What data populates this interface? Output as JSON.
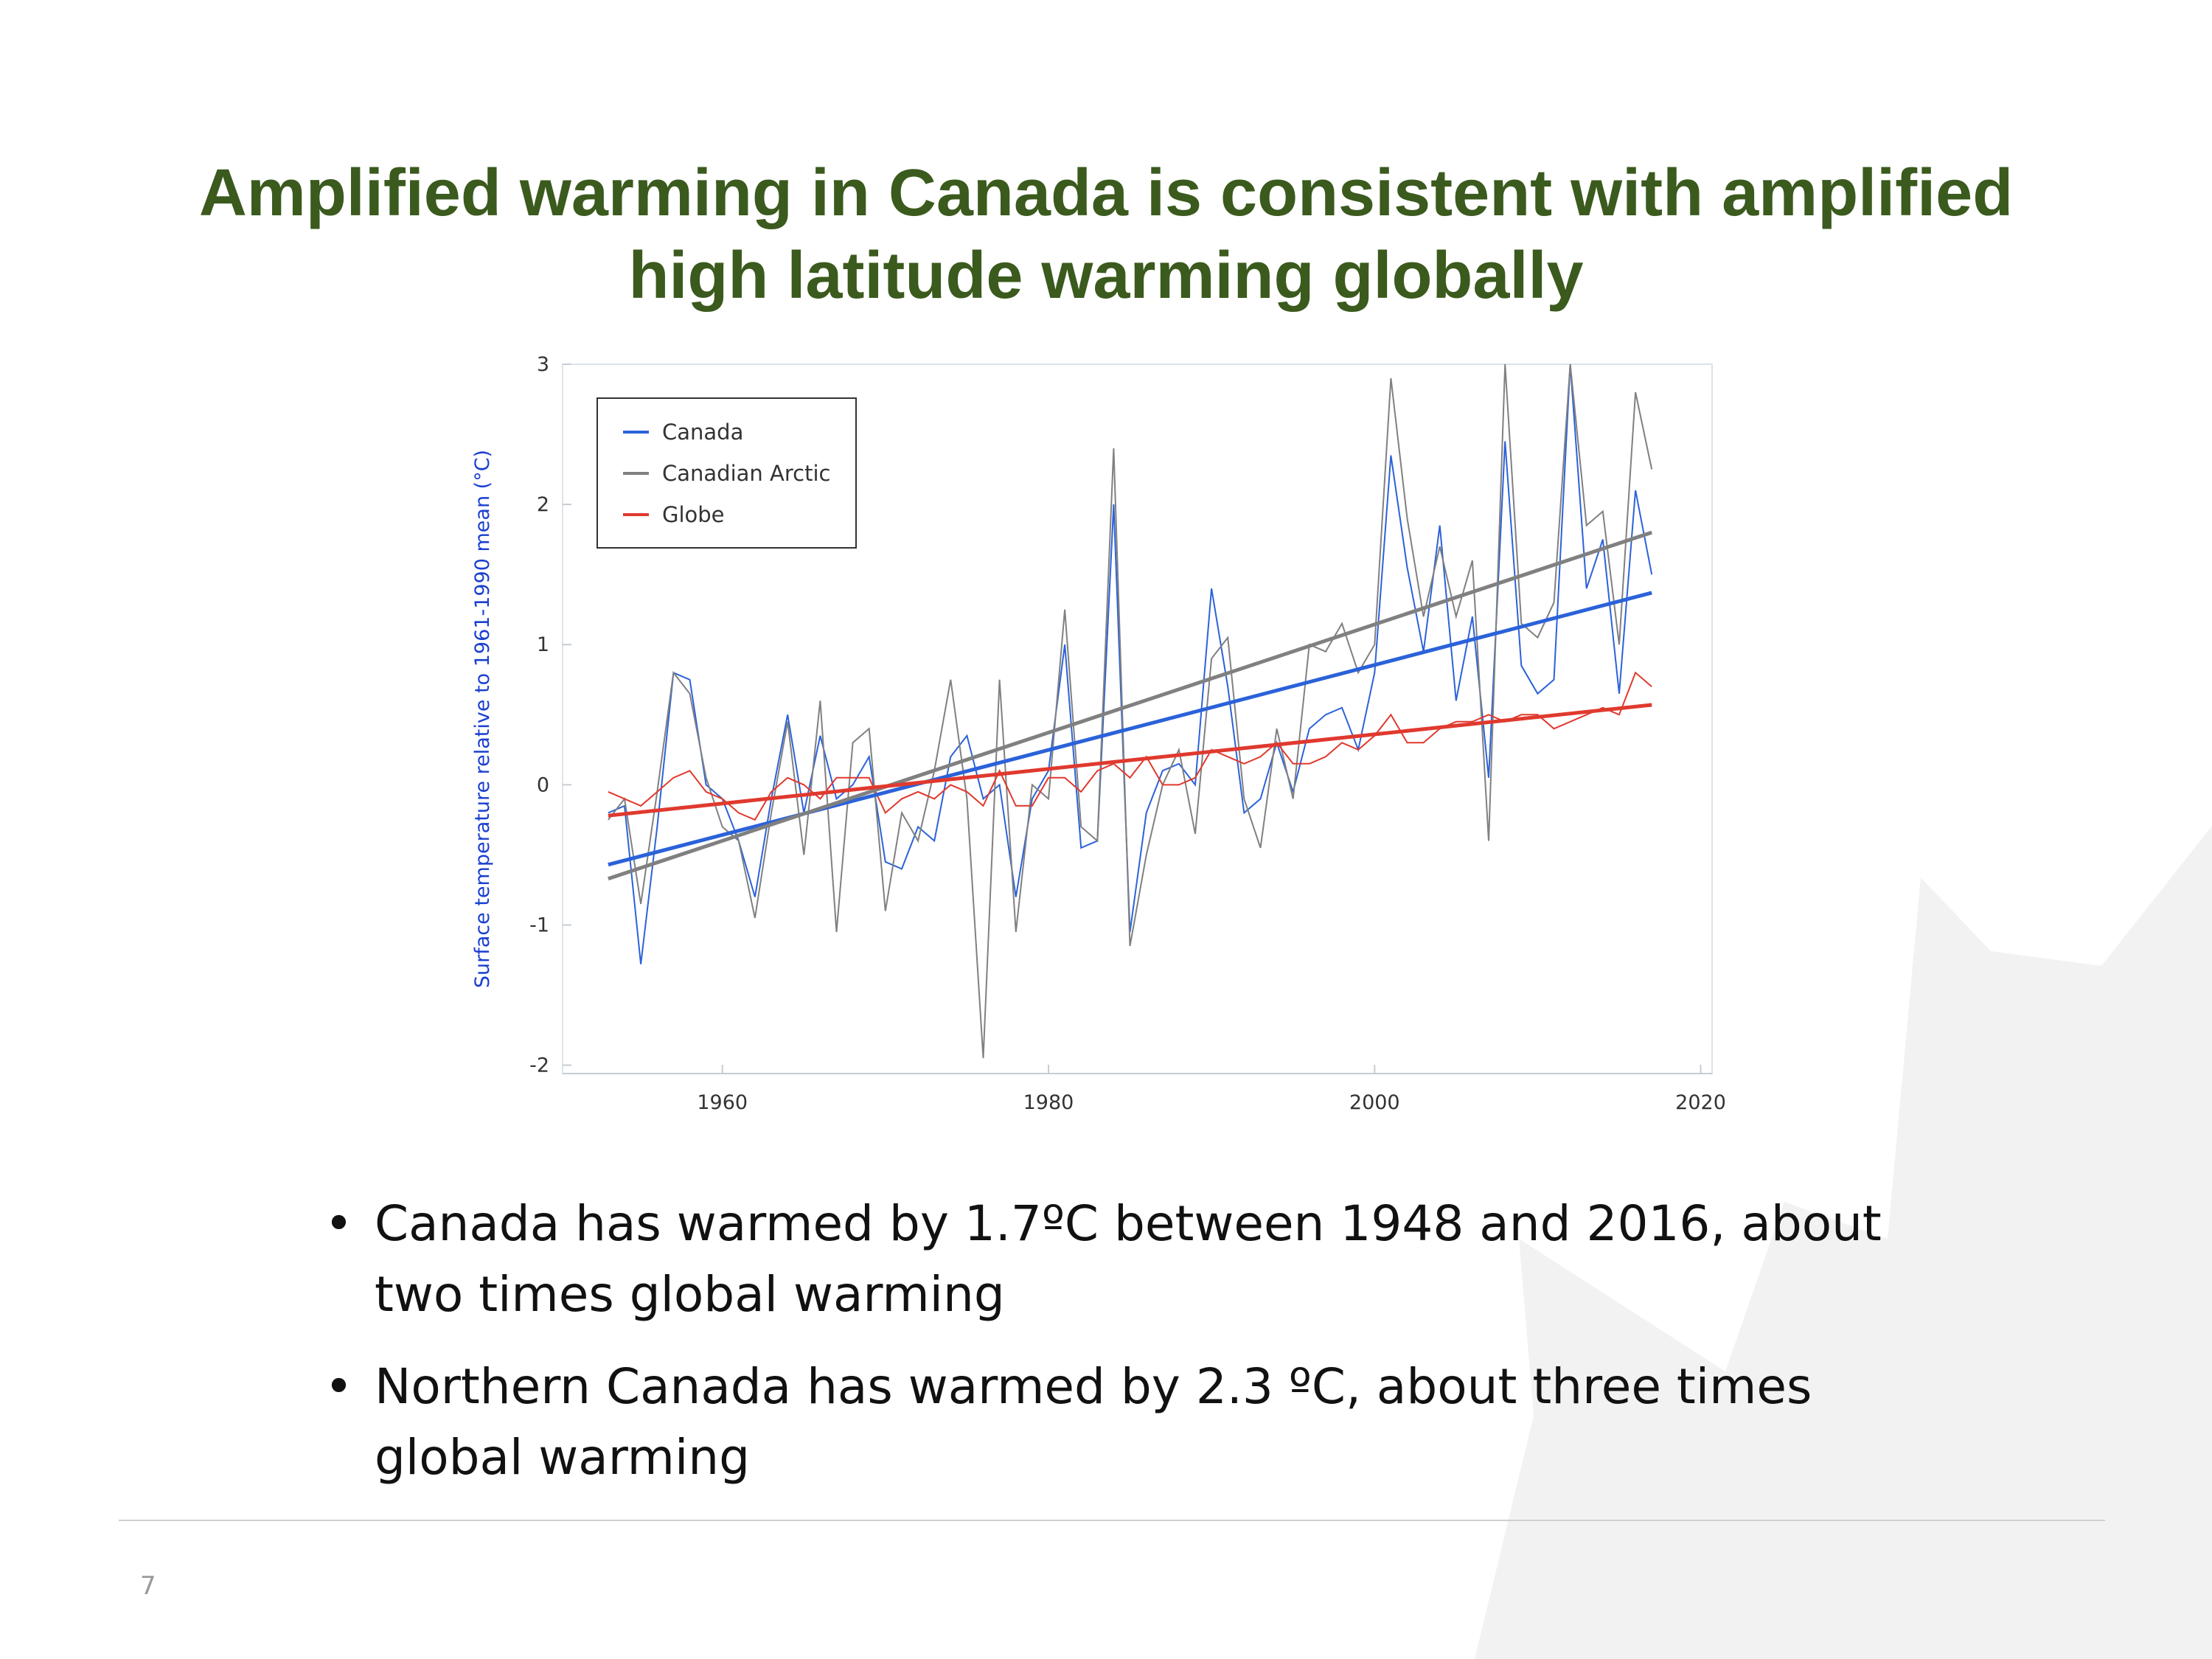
{
  "slide": {
    "title_lines": [
      "Amplified warming in Canada is consistent with amplified",
      "high latitude warming globally"
    ],
    "bullets": [
      "Canada has warmed by 1.7ºC between 1948 and 2016, about two times global warming",
      "Northern Canada has warmed by 2.3 ºC, about three times global warming"
    ],
    "page_number": "7"
  },
  "chart_data": {
    "type": "line",
    "y_label": "Surface temperature relative to 1961-1990 mean (°C)",
    "x": [
      1953,
      1954,
      1955,
      1956,
      1957,
      1958,
      1959,
      1960,
      1961,
      1962,
      1963,
      1964,
      1965,
      1966,
      1967,
      1968,
      1969,
      1970,
      1971,
      1972,
      1973,
      1974,
      1975,
      1976,
      1977,
      1978,
      1979,
      1980,
      1981,
      1982,
      1983,
      1984,
      1985,
      1986,
      1987,
      1988,
      1989,
      1990,
      1991,
      1992,
      1993,
      1994,
      1995,
      1996,
      1997,
      1998,
      1999,
      2000,
      2001,
      2002,
      2003,
      2004,
      2005,
      2006,
      2007,
      2008,
      2009,
      2010,
      2011,
      2012,
      2013,
      2014,
      2015,
      2016,
      2017
    ],
    "series": [
      {
        "name": "Canada",
        "color": "#2b62d9",
        "values": [
          -0.2,
          -0.15,
          -1.28,
          -0.3,
          0.8,
          0.75,
          0.0,
          -0.1,
          -0.4,
          -0.8,
          -0.1,
          0.5,
          -0.2,
          0.35,
          -0.1,
          0.0,
          0.2,
          -0.55,
          -0.6,
          -0.3,
          -0.4,
          0.2,
          0.35,
          -0.1,
          0.0,
          -0.8,
          -0.1,
          0.1,
          1.0,
          -0.45,
          -0.4,
          2.0,
          -1.05,
          -0.2,
          0.1,
          0.15,
          0.0,
          1.4,
          0.7,
          -0.2,
          -0.1,
          0.3,
          -0.05,
          0.4,
          0.5,
          0.55,
          0.25,
          0.8,
          2.35,
          1.55,
          0.95,
          1.85,
          0.6,
          1.2,
          0.05,
          2.45,
          0.85,
          0.65,
          0.75,
          3.0,
          1.4,
          1.75,
          0.65,
          2.1,
          1.5
        ],
        "trend": {
          "x": [
            1953,
            2017
          ],
          "values": [
            -0.57,
            1.37
          ]
        }
      },
      {
        "name": "Canadian Arctic",
        "color": "#808080",
        "values": [
          -0.25,
          -0.1,
          -0.85,
          -0.05,
          0.8,
          0.65,
          0.05,
          -0.3,
          -0.4,
          -0.95,
          -0.2,
          0.45,
          -0.5,
          0.6,
          -1.05,
          0.3,
          0.4,
          -0.9,
          -0.2,
          -0.4,
          0.1,
          0.75,
          -0.1,
          -1.95,
          0.75,
          -1.05,
          0.0,
          -0.1,
          1.25,
          -0.3,
          -0.4,
          2.4,
          -1.15,
          -0.5,
          0.0,
          0.25,
          -0.35,
          0.9,
          1.05,
          -0.1,
          -0.45,
          0.4,
          -0.1,
          1.0,
          0.95,
          1.15,
          0.8,
          1.0,
          2.9,
          1.9,
          1.2,
          1.7,
          1.2,
          1.6,
          -0.4,
          3.0,
          1.15,
          1.05,
          1.3,
          3.0,
          1.85,
          1.95,
          1.0,
          2.8,
          2.25
        ],
        "trend": {
          "x": [
            1953,
            2017
          ],
          "values": [
            -0.67,
            1.8
          ]
        }
      },
      {
        "name": "Globe",
        "color": "#e0392e",
        "values": [
          -0.05,
          -0.1,
          -0.15,
          -0.05,
          0.05,
          0.1,
          -0.05,
          -0.1,
          -0.2,
          -0.25,
          -0.05,
          0.05,
          0.0,
          -0.1,
          0.05,
          0.05,
          0.05,
          -0.2,
          -0.1,
          -0.05,
          -0.1,
          0.0,
          -0.05,
          -0.15,
          0.1,
          -0.15,
          -0.15,
          0.05,
          0.05,
          -0.05,
          0.1,
          0.15,
          0.05,
          0.2,
          0.0,
          0.0,
          0.05,
          0.25,
          0.2,
          0.15,
          0.2,
          0.3,
          0.15,
          0.15,
          0.2,
          0.3,
          0.25,
          0.35,
          0.5,
          0.3,
          0.3,
          0.4,
          0.45,
          0.45,
          0.5,
          0.45,
          0.5,
          0.5,
          0.4,
          0.45,
          0.5,
          0.55,
          0.5,
          0.8,
          0.7
        ],
        "trend": {
          "x": [
            1953,
            2017
          ],
          "values": [
            -0.22,
            0.57
          ]
        }
      }
    ],
    "xlim": [
      1950.2,
      2020.7
    ],
    "xticks": [
      1960,
      1980,
      2000,
      2020
    ],
    "ylim": [
      -2.06,
      3
    ],
    "yticks": [
      -2,
      -1,
      0,
      1,
      2,
      3
    ],
    "legend": "upper left"
  }
}
